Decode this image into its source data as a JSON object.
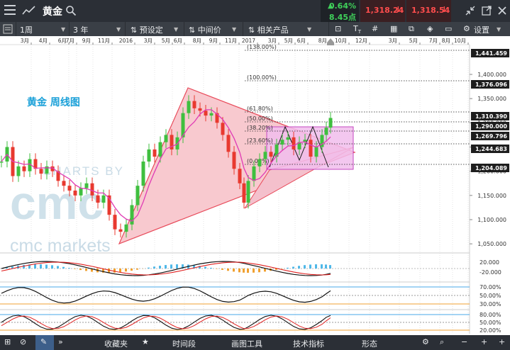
{
  "header": {
    "title": "黄金",
    "change_pct": "0.64%",
    "change_pts": "8.45点",
    "sell_price": "1,318.24",
    "buy_price": "1,318.54"
  },
  "toolbar": {
    "interval": "1周",
    "range": "3 年",
    "preset_label": "预设定",
    "price_type_label": "中间价",
    "related_label": "相关产品",
    "settings_label": "设置"
  },
  "chart": {
    "watermark_brand": "cmc markets",
    "watermark_text": "CHARTS BY",
    "title": "黄金 周线图",
    "x_ticks": [
      "3月",
      "4月",
      "6月",
      "7月",
      "9月",
      "11月",
      "2016",
      "3月",
      "5月",
      "6月",
      "8月",
      "9月",
      "11月",
      "2017",
      "3月",
      "5月",
      "6月",
      "8月",
      "10月",
      "12月",
      "3月",
      "5月",
      "7月",
      "8月",
      "10月"
    ],
    "y_ticks": [
      "1,400.000",
      "1,350.000",
      "1,300.000",
      "1,250.000",
      "1,200.000",
      "1,150.000",
      "1,100.000",
      "1,050.000"
    ],
    "price_tags": [
      "1,441.459",
      "1,376.096",
      "1,310.390",
      "1,290.000",
      "1,269.796",
      "1,244.683",
      "1,204.089"
    ],
    "fib_levels": [
      {
        "label": "(138.00%)"
      },
      {
        "label": "(100.00%)"
      },
      {
        "label": "(61.80%)"
      },
      {
        "label": "(50.00%)"
      },
      {
        "label": "(38.20%)"
      },
      {
        "label": "(23.60%)"
      },
      {
        "label": "(0.00%)"
      }
    ],
    "macd_ticks": [
      "20.000",
      "-20.000"
    ],
    "osc1_ticks": [
      "70.00%",
      "50.00%",
      "30.00%"
    ],
    "osc2_ticks": [
      "80.00%",
      "50.00%",
      "20.00%"
    ],
    "colors": {
      "up": "#3fbf3f",
      "down": "#e8392f",
      "ma": "#e03bb5",
      "triangle_fill": "#f8c4cc",
      "rect_fill": "#f0b8ee"
    }
  },
  "bottom": {
    "favorites": "收藏夹",
    "timeframe": "时间段",
    "drawing_tools": "画图工具",
    "indicators": "技术指标",
    "patterns": "形态"
  }
}
